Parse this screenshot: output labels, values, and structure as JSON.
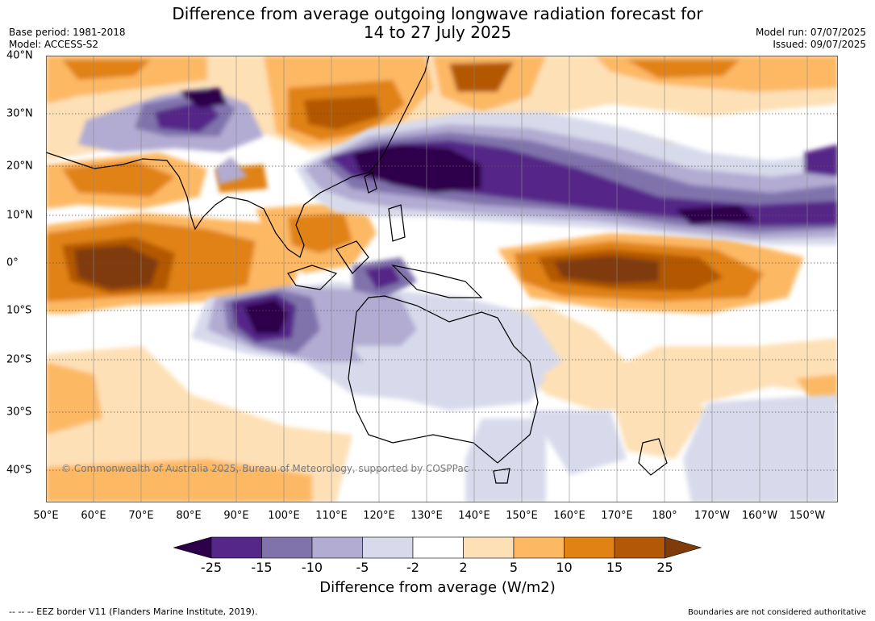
{
  "title": {
    "line1": "Difference from average outgoing longwave radiation forecast for",
    "line2": "14 to 27 July 2025"
  },
  "meta_left": {
    "base_period": "Base period: 1981-2018",
    "model": "Model: ACCESS-S2"
  },
  "meta_right": {
    "model_run": "Model run: 07/07/2025",
    "issued": "Issued: 09/07/2025"
  },
  "map": {
    "copyright": "© Commonwealth of Australia 2025, Bureau of Meteorology, supported by COSPPac",
    "lon_ticks": [
      "50°E",
      "60°E",
      "70°E",
      "80°E",
      "90°E",
      "100°E",
      "110°E",
      "120°E",
      "130°E",
      "140°E",
      "150°E",
      "160°E",
      "170°E",
      "180°",
      "170°W",
      "160°W",
      "150°W"
    ],
    "lat_ticks": [
      "40°N",
      "30°N",
      "20°N",
      "10°N",
      "0°",
      "10°S",
      "20°S",
      "30°S",
      "40°S"
    ],
    "lon_range": [
      50,
      216.5
    ],
    "lat_range": [
      -45.5,
      40
    ]
  },
  "colorbar": {
    "title": "Difference from average (W/m2)",
    "labels": [
      "-25",
      "-15",
      "-10",
      "-5",
      "-2",
      "2",
      "5",
      "10",
      "15",
      "25"
    ],
    "colors": [
      "#2d004b",
      "#542788",
      "#8073ac",
      "#b2abd2",
      "#d8daeb",
      "#ffffff",
      "#fee0b6",
      "#fdb863",
      "#e08214",
      "#b35806",
      "#7f3b08"
    ]
  },
  "footer": {
    "eez_note": "--  --  -- EEZ border V11 (Flanders Marine Institute, 2019).",
    "boundaries_note": "Boundaries are not considered authoritative"
  }
}
